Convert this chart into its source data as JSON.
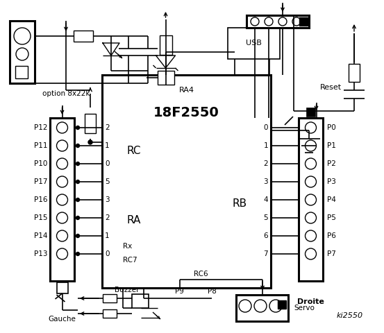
{
  "bg_color": "#ffffff",
  "ic_label": "18F2550",
  "ic_sublabel": "RA4",
  "rc_label": "RC",
  "ra_label": "RA",
  "rb_label": "RB",
  "left_connector_pins": [
    "P12",
    "P11",
    "P10",
    "P17",
    "P16",
    "P15",
    "P14",
    "P13"
  ],
  "rc_nums": [
    "2",
    "1",
    "0",
    "5",
    "3",
    "2",
    "1",
    "0"
  ],
  "rb_nums": [
    "0",
    "1",
    "2",
    "3",
    "4",
    "5",
    "6",
    "7"
  ],
  "right_pins": [
    "P0",
    "P1",
    "P2",
    "P3",
    "P4",
    "P5",
    "P6",
    "P7"
  ],
  "gauche_label": "Gauche",
  "droite_label": "Droite",
  "ki_label": "ki2550",
  "option_label": "option 8x22k",
  "reset_label": "Reset",
  "usb_label": "USB",
  "buzzer_label": "Buzzer",
  "servo_label": "Servo",
  "p8_label": "P8",
  "p9_label": "P9",
  "rx_label": "Rx",
  "rc7_label": "RC7",
  "rc6_label": "RC6"
}
